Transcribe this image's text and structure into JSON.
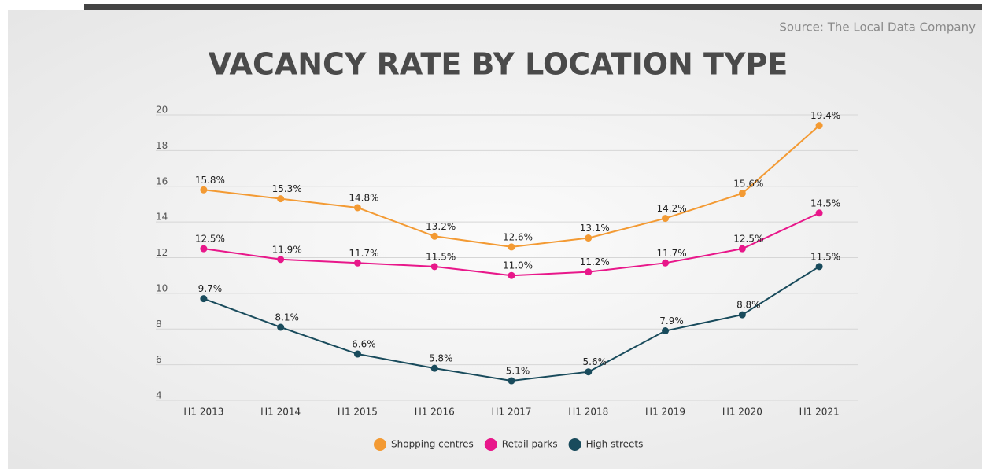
{
  "chart_data": {
    "type": "line",
    "title": "VACANCY RATE BY LOCATION TYPE",
    "source": "Source: The Local Data Company",
    "categories": [
      "H1 2013",
      "H1 2014",
      "H1 2015",
      "H1 2016",
      "H1 2017",
      "H1 2018",
      "H1 2019",
      "H1 2020",
      "H1 2021"
    ],
    "series": [
      {
        "name": "Shopping centres",
        "color": "#f39a33",
        "values": [
          15.8,
          15.3,
          14.8,
          13.2,
          12.6,
          13.1,
          14.2,
          15.6,
          19.4
        ],
        "value_labels": [
          "15.8%",
          "15.3%",
          "14.8%",
          "13.2%",
          "12.6%",
          "13.1%",
          "14.2%",
          "15.6%",
          "19.4%"
        ]
      },
      {
        "name": "Retail parks",
        "color": "#e8178a",
        "values": [
          12.5,
          11.9,
          11.7,
          11.5,
          11.0,
          11.2,
          11.7,
          12.5,
          14.5
        ],
        "value_labels": [
          "12.5%",
          "11.9%",
          "11.7%",
          "11.5%",
          "11.0%",
          "11.2%",
          "11.7%",
          "12.5%",
          "14.5%"
        ]
      },
      {
        "name": "High streets",
        "color": "#194b5c",
        "values": [
          9.7,
          8.1,
          6.6,
          5.8,
          5.1,
          5.6,
          7.9,
          8.8,
          11.5
        ],
        "value_labels": [
          "9.7%",
          "8.1%",
          "6.6%",
          "5.8%",
          "5.1%",
          "5.6%",
          "7.9%",
          "8.8%",
          "11.5%"
        ]
      }
    ],
    "ylim": [
      4,
      20
    ],
    "yticks": [
      4,
      6,
      8,
      10,
      12,
      14,
      16,
      18,
      20
    ],
    "grid": true
  }
}
